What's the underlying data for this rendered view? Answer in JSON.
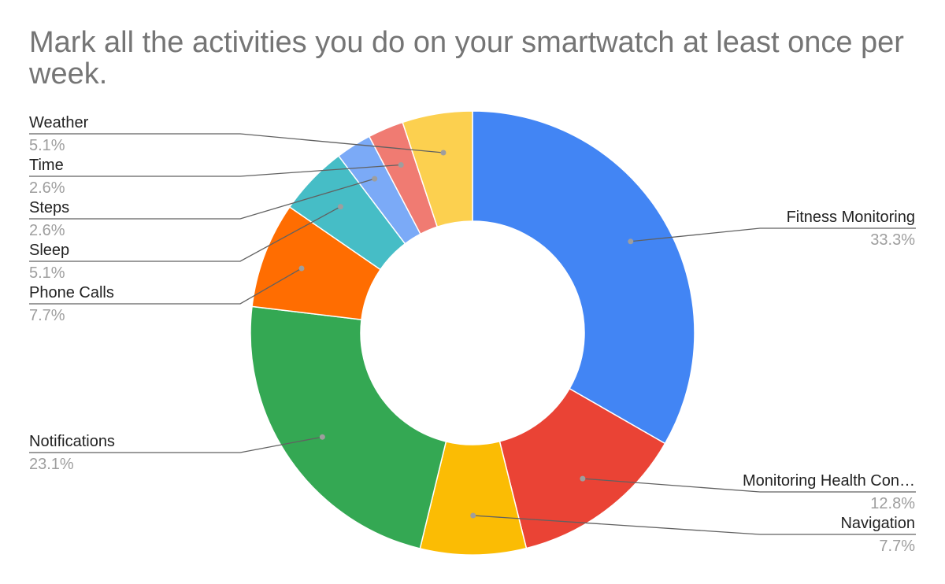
{
  "chart_data": {
    "type": "donut",
    "title": "Mark all the activities you do on your smartwatch at least once per week.",
    "slices": [
      {
        "label": "Fitness Monitoring",
        "value": 33.3,
        "value_label": "33.3%",
        "color": "#4285F4"
      },
      {
        "label": "Monitoring Health Con…",
        "value": 12.8,
        "value_label": "12.8%",
        "color": "#EA4335"
      },
      {
        "label": "Navigation",
        "value": 7.7,
        "value_label": "7.7%",
        "color": "#FBBC04"
      },
      {
        "label": "Notifications",
        "value": 23.1,
        "value_label": "23.1%",
        "color": "#34A853"
      },
      {
        "label": "Phone Calls",
        "value": 7.7,
        "value_label": "7.7%",
        "color": "#FF6D01"
      },
      {
        "label": "Sleep",
        "value": 5.1,
        "value_label": "5.1%",
        "color": "#46BDC6"
      },
      {
        "label": "Steps",
        "value": 2.6,
        "value_label": "2.6%",
        "color": "#7BAAF7"
      },
      {
        "label": "Time",
        "value": 2.6,
        "value_label": "2.6%",
        "color": "#F07B72"
      },
      {
        "label": "Weather",
        "value": 5.1,
        "value_label": "5.1%",
        "color": "#FCD04F"
      }
    ],
    "legend": "none",
    "label_position": "outside with leader lines"
  }
}
